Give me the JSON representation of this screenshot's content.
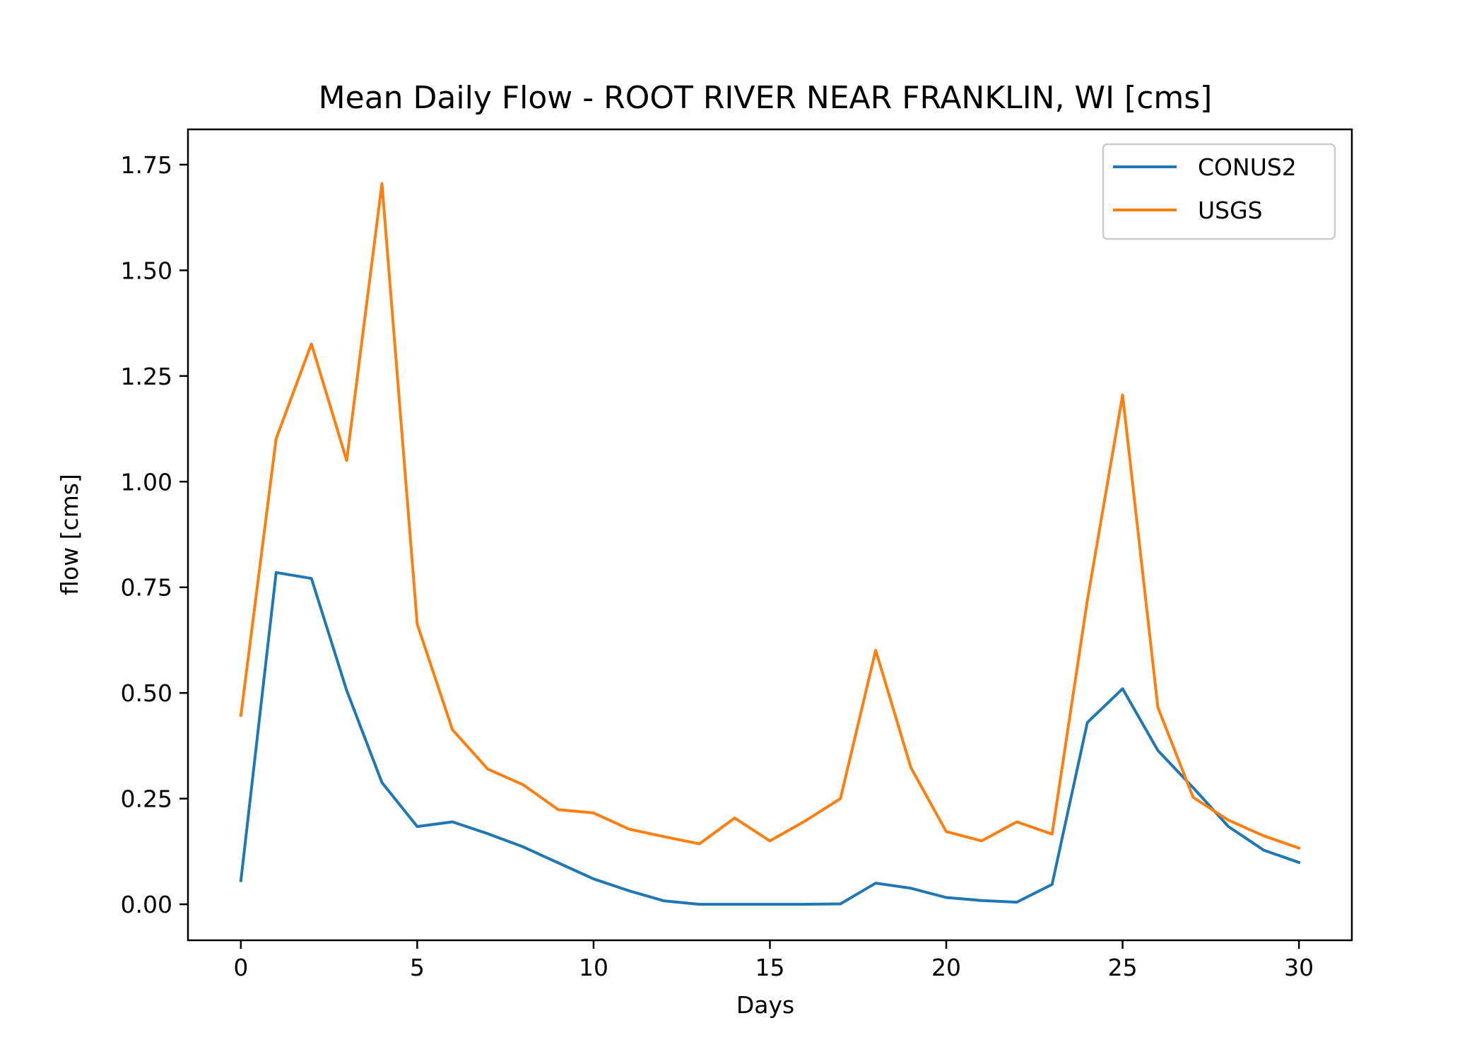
{
  "chart_data": {
    "type": "line",
    "title": "Mean Daily Flow - ROOT RIVER NEAR FRANKLIN, WI [cms]",
    "xlabel": "Days",
    "ylabel": "flow [cms]",
    "xlim": [
      -1.5,
      31.5
    ],
    "ylim": [
      -0.0852,
      1.8335
    ],
    "xticks": [
      0,
      5,
      10,
      15,
      20,
      25,
      30
    ],
    "xtick_labels": [
      "0",
      "5",
      "10",
      "15",
      "20",
      "25",
      "30"
    ],
    "yticks": [
      0,
      0.25,
      0.5,
      0.75,
      1.0,
      1.25,
      1.5,
      1.75
    ],
    "ytick_labels": [
      "0.00",
      "0.25",
      "0.50",
      "0.75",
      "1.00",
      "1.25",
      "1.50",
      "1.75"
    ],
    "grid": false,
    "legend_position": "upper right",
    "x": [
      0,
      1,
      2,
      3,
      4,
      5,
      6,
      7,
      8,
      9,
      10,
      11,
      12,
      13,
      14,
      15,
      16,
      17,
      18,
      19,
      20,
      21,
      22,
      23,
      24,
      25,
      26,
      27,
      28,
      29,
      30
    ],
    "series": [
      {
        "name": "CONUS2",
        "color": "#1f77b4",
        "values": [
          0.056,
          0.785,
          0.771,
          0.506,
          0.288,
          0.184,
          0.195,
          0.167,
          0.136,
          0.098,
          0.06,
          0.032,
          0.008,
          0.0,
          0.0,
          0.0,
          0.0,
          0.001,
          0.05,
          0.038,
          0.016,
          0.009,
          0.005,
          0.047,
          0.43,
          0.51,
          0.364,
          0.276,
          0.184,
          0.128,
          0.099
        ]
      },
      {
        "name": "USGS",
        "color": "#ff7f0e",
        "values": [
          0.447,
          1.102,
          1.326,
          1.05,
          1.705,
          0.663,
          0.413,
          0.32,
          0.283,
          0.224,
          0.216,
          0.178,
          0.16,
          0.143,
          0.204,
          0.15,
          0.197,
          0.25,
          0.601,
          0.323,
          0.172,
          0.15,
          0.195,
          0.166,
          0.719,
          1.205,
          0.466,
          0.253,
          0.199,
          0.162,
          0.133
        ]
      }
    ]
  }
}
